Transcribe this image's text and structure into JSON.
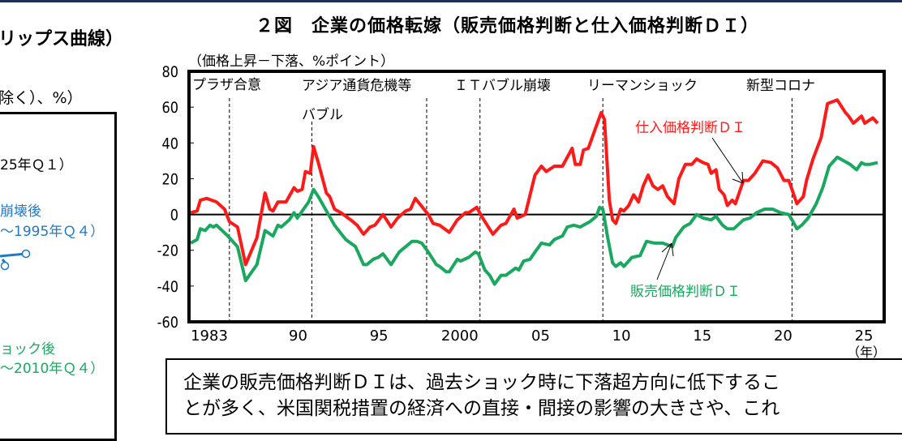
{
  "left_panel": {
    "title": "リップス曲線）",
    "unit": "除く）、%）",
    "period_label": "25年Ｑ１）",
    "blue_label_1": "崩壊後",
    "blue_label_2": "～1995年Ｑ４）",
    "green_label_1": "ョック後",
    "green_label_2": "～2010年Ｑ４）",
    "blue_color": "#1f78c8",
    "green_color": "#1aa860"
  },
  "note": {
    "line1": "企業の販売価格判断ＤＩは、過去ショック時に下落超方向に低下するこ",
    "line2": "とが多く、米国関税措置の経済への直接・間接の影響の大きさや、これ"
  },
  "chart_data": {
    "type": "line",
    "title": "２図　企業の価格転嫁（販売価格判断と仕入価格判断ＤＩ）",
    "ylabel": "（価格上昇－下落、%ポイント）",
    "xlabel": "（年）",
    "ylim": [
      -60,
      80
    ],
    "xlim": [
      1983,
      2026
    ],
    "yticks": [
      80,
      60,
      40,
      20,
      0,
      -20,
      -40,
      -60
    ],
    "xticks": [
      {
        "year": 1983,
        "label": "1983"
      },
      {
        "year": 1990,
        "label": "90"
      },
      {
        "year": 1995,
        "label": "95"
      },
      {
        "year": 2000,
        "label": "2000"
      },
      {
        "year": 2005,
        "label": "05"
      },
      {
        "year": 2010,
        "label": "10"
      },
      {
        "year": 2015,
        "label": "15"
      },
      {
        "year": 2020,
        "label": "20"
      },
      {
        "year": 2025,
        "label": "25"
      }
    ],
    "grid": false,
    "zero_line": true,
    "events": [
      {
        "label": "プラザ合意",
        "year": 1985.5
      },
      {
        "label": "バブル",
        "year": 1990.6
      },
      {
        "label": "アジア通貨危機等",
        "year": 1997.7
      },
      {
        "label": "ＩＴバブル崩壊",
        "year": 2001.0
      },
      {
        "label": "リーマンショック",
        "year": 2008.6
      },
      {
        "label": "新型コロナ",
        "year": 2020.3
      }
    ],
    "series": [
      {
        "name": "仕入価格判断ＤＩ",
        "color": "#ff1a1a",
        "points": [
          [
            1983.1,
            1
          ],
          [
            1983.5,
            2
          ],
          [
            1983.7,
            8
          ],
          [
            1984.1,
            9
          ],
          [
            1984.7,
            7
          ],
          [
            1985.2,
            3
          ],
          [
            1985.5,
            -4
          ],
          [
            1986.0,
            -7
          ],
          [
            1986.5,
            -28
          ],
          [
            1987.2,
            -13
          ],
          [
            1987.7,
            12
          ],
          [
            1988.0,
            3
          ],
          [
            1988.2,
            2
          ],
          [
            1988.5,
            7
          ],
          [
            1989.0,
            7
          ],
          [
            1989.5,
            15
          ],
          [
            1989.7,
            13
          ],
          [
            1990.0,
            14
          ],
          [
            1990.2,
            24
          ],
          [
            1990.5,
            23
          ],
          [
            1990.7,
            38
          ],
          [
            1991.0,
            29
          ],
          [
            1991.5,
            12
          ],
          [
            1991.7,
            10
          ],
          [
            1992.0,
            3
          ],
          [
            1992.4,
            1
          ],
          [
            1993.0,
            -3
          ],
          [
            1993.4,
            -6
          ],
          [
            1993.8,
            -11
          ],
          [
            1994.2,
            -7
          ],
          [
            1994.5,
            -6
          ],
          [
            1995.0,
            0
          ],
          [
            1995.5,
            -7
          ],
          [
            1995.9,
            -2
          ],
          [
            1996.4,
            2
          ],
          [
            1996.7,
            3
          ],
          [
            1997.0,
            9
          ],
          [
            1997.8,
            0
          ],
          [
            1998.1,
            -5
          ],
          [
            1998.5,
            -6
          ],
          [
            1999.1,
            -10
          ],
          [
            1999.6,
            -3
          ],
          [
            2000.1,
            1
          ],
          [
            2000.3,
            1
          ],
          [
            2000.8,
            4
          ],
          [
            2001.1,
            -1
          ],
          [
            2001.8,
            -11
          ],
          [
            2002.3,
            -6
          ],
          [
            2002.6,
            -5
          ],
          [
            2003.1,
            3
          ],
          [
            2003.3,
            -2
          ],
          [
            2003.8,
            0
          ],
          [
            2004.4,
            22
          ],
          [
            2004.8,
            27
          ],
          [
            2005.1,
            24
          ],
          [
            2005.6,
            27
          ],
          [
            2006.1,
            27
          ],
          [
            2006.7,
            37
          ],
          [
            2006.9,
            28
          ],
          [
            2007.2,
            28
          ],
          [
            2007.4,
            36
          ],
          [
            2007.7,
            37
          ],
          [
            2008.1,
            47
          ],
          [
            2008.5,
            57
          ],
          [
            2008.7,
            53
          ],
          [
            2009.0,
            8
          ],
          [
            2009.2,
            -3
          ],
          [
            2009.4,
            -5
          ],
          [
            2009.7,
            3
          ],
          [
            2009.9,
            2
          ],
          [
            2010.2,
            5
          ],
          [
            2010.5,
            11
          ],
          [
            2010.8,
            7
          ],
          [
            2011.1,
            16
          ],
          [
            2011.4,
            22
          ],
          [
            2011.7,
            16
          ],
          [
            2012.0,
            14
          ],
          [
            2012.3,
            16
          ],
          [
            2012.6,
            10
          ],
          [
            2013.0,
            6
          ],
          [
            2013.3,
            20
          ],
          [
            2013.7,
            28
          ],
          [
            2014.1,
            28
          ],
          [
            2014.4,
            31
          ],
          [
            2014.8,
            29
          ],
          [
            2015.1,
            28
          ],
          [
            2015.3,
            23
          ],
          [
            2015.6,
            25
          ],
          [
            2015.8,
            14
          ],
          [
            2016.1,
            11
          ],
          [
            2016.3,
            5
          ],
          [
            2016.6,
            8
          ],
          [
            2016.8,
            6
          ],
          [
            2017.3,
            19
          ],
          [
            2017.6,
            19
          ],
          [
            2018.0,
            23
          ],
          [
            2018.5,
            30
          ],
          [
            2019.0,
            29
          ],
          [
            2019.4,
            26
          ],
          [
            2019.8,
            19
          ],
          [
            2020.1,
            19
          ],
          [
            2020.3,
            14
          ],
          [
            2020.6,
            6
          ],
          [
            2021.0,
            10
          ],
          [
            2021.2,
            19
          ],
          [
            2021.6,
            31
          ],
          [
            2022.1,
            43
          ],
          [
            2022.5,
            62
          ],
          [
            2023.1,
            64
          ],
          [
            2023.6,
            57
          ],
          [
            2023.8,
            55
          ],
          [
            2024.1,
            51
          ],
          [
            2024.6,
            55
          ],
          [
            2024.8,
            51
          ],
          [
            2025.3,
            54
          ],
          [
            2025.6,
            51
          ]
        ]
      },
      {
        "name": "販売価格判断ＤＩ",
        "color": "#1aa860",
        "points": [
          [
            1983.1,
            -16
          ],
          [
            1983.5,
            -14
          ],
          [
            1983.7,
            -8
          ],
          [
            1984.0,
            -9
          ],
          [
            1984.3,
            -6
          ],
          [
            1984.5,
            -7
          ],
          [
            1984.7,
            -6
          ],
          [
            1985.4,
            -12
          ],
          [
            1986.0,
            -18
          ],
          [
            1986.5,
            -37
          ],
          [
            1987.2,
            -28
          ],
          [
            1987.7,
            -9
          ],
          [
            1988.2,
            -12
          ],
          [
            1988.5,
            -6
          ],
          [
            1988.7,
            -7
          ],
          [
            1989.2,
            -3
          ],
          [
            1989.5,
            1
          ],
          [
            1989.7,
            -2
          ],
          [
            1990.4,
            7
          ],
          [
            1990.7,
            14
          ],
          [
            1991.0,
            10
          ],
          [
            1991.5,
            2
          ],
          [
            1992.0,
            -6
          ],
          [
            1992.7,
            -14
          ],
          [
            1993.3,
            -18
          ],
          [
            1993.8,
            -28
          ],
          [
            1994.0,
            -28
          ],
          [
            1994.4,
            -25
          ],
          [
            1994.7,
            -24
          ],
          [
            1995.0,
            -22
          ],
          [
            1995.5,
            -28
          ],
          [
            1996.0,
            -21
          ],
          [
            1996.4,
            -18
          ],
          [
            1996.8,
            -15
          ],
          [
            1997.1,
            -15
          ],
          [
            1997.4,
            -16
          ],
          [
            1997.8,
            -21
          ],
          [
            1998.3,
            -28
          ],
          [
            1998.5,
            -29
          ],
          [
            1998.9,
            -32
          ],
          [
            1999.1,
            -32
          ],
          [
            1999.6,
            -25
          ],
          [
            1999.8,
            -26
          ],
          [
            2000.3,
            -24
          ],
          [
            2000.7,
            -21
          ],
          [
            2000.9,
            -22
          ],
          [
            2001.3,
            -31
          ],
          [
            2001.6,
            -34
          ],
          [
            2001.9,
            -39
          ],
          [
            2002.3,
            -34
          ],
          [
            2002.6,
            -34
          ],
          [
            2003.2,
            -30
          ],
          [
            2003.4,
            -31
          ],
          [
            2003.7,
            -26
          ],
          [
            2004.1,
            -25
          ],
          [
            2004.4,
            -21
          ],
          [
            2004.8,
            -16
          ],
          [
            2005.3,
            -17
          ],
          [
            2005.6,
            -14
          ],
          [
            2006.1,
            -12
          ],
          [
            2006.4,
            -7
          ],
          [
            2006.8,
            -6
          ],
          [
            2007.2,
            -7
          ],
          [
            2007.8,
            -4
          ],
          [
            2008.2,
            -1
          ],
          [
            2008.4,
            4
          ],
          [
            2008.6,
            3
          ],
          [
            2008.9,
            -13
          ],
          [
            2009.2,
            -27
          ],
          [
            2009.4,
            -29
          ],
          [
            2009.7,
            -27
          ],
          [
            2009.9,
            -29
          ],
          [
            2010.4,
            -24
          ],
          [
            2010.9,
            -23
          ],
          [
            2011.3,
            -15
          ],
          [
            2011.8,
            -16
          ],
          [
            2012.3,
            -16
          ],
          [
            2012.9,
            -18
          ],
          [
            2013.1,
            -13
          ],
          [
            2013.6,
            -7
          ],
          [
            2014.0,
            -5
          ],
          [
            2014.4,
            0
          ],
          [
            2014.8,
            -2
          ],
          [
            2015.3,
            -3
          ],
          [
            2015.6,
            -1
          ],
          [
            2016.0,
            -6
          ],
          [
            2016.3,
            -8
          ],
          [
            2016.7,
            -8
          ],
          [
            2017.3,
            -3
          ],
          [
            2017.7,
            -2
          ],
          [
            2018.1,
            1
          ],
          [
            2018.6,
            3
          ],
          [
            2019.1,
            3
          ],
          [
            2019.6,
            1
          ],
          [
            2020.1,
            0
          ],
          [
            2020.3,
            -3
          ],
          [
            2020.6,
            -8
          ],
          [
            2020.9,
            -6
          ],
          [
            2021.3,
            -2
          ],
          [
            2021.8,
            6
          ],
          [
            2022.2,
            15
          ],
          [
            2022.6,
            27
          ],
          [
            2023.1,
            32
          ],
          [
            2023.5,
            30
          ],
          [
            2023.9,
            28
          ],
          [
            2024.3,
            25
          ],
          [
            2024.6,
            29
          ],
          [
            2024.8,
            28
          ],
          [
            2025.1,
            28
          ],
          [
            2025.6,
            29
          ]
        ]
      }
    ]
  }
}
